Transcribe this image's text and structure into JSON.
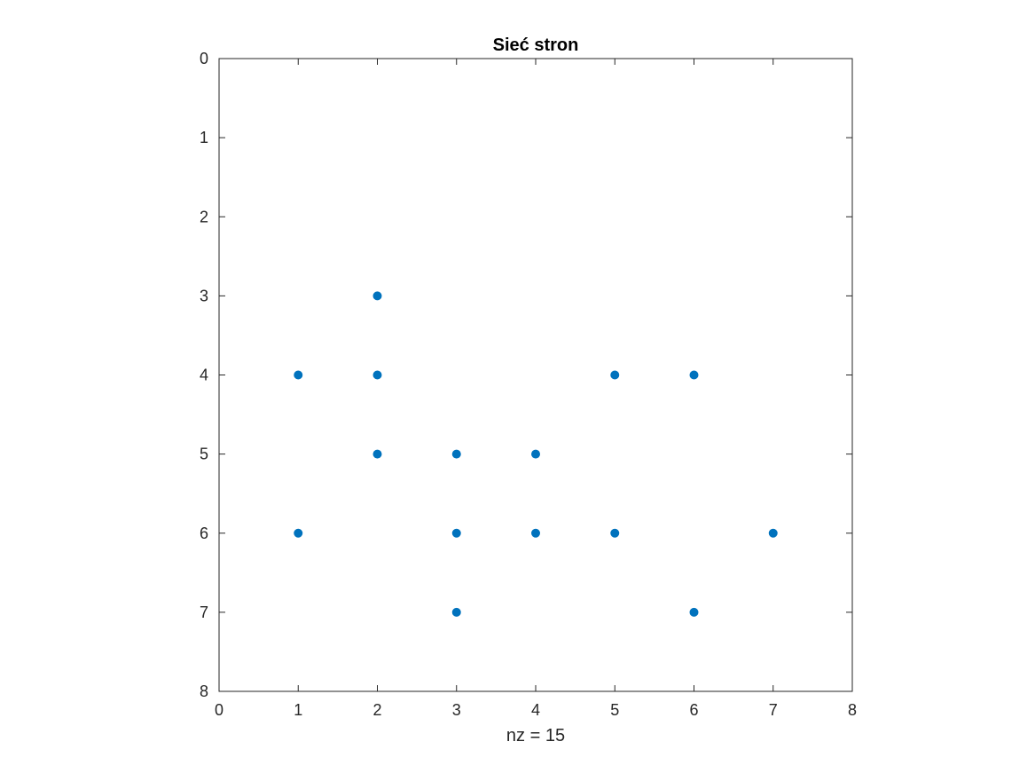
{
  "chart_data": {
    "type": "scatter",
    "title": "Sieć stron",
    "xlabel": "nz = 15",
    "ylabel": "",
    "xlim": [
      0,
      8
    ],
    "ylim": [
      0,
      8
    ],
    "y_reversed": true,
    "x_ticks": [
      "0",
      "1",
      "2",
      "3",
      "4",
      "5",
      "6",
      "7",
      "8"
    ],
    "y_ticks": [
      "0",
      "1",
      "2",
      "3",
      "4",
      "5",
      "6",
      "7",
      "8"
    ],
    "grid": false,
    "marker_color": "#0072BD",
    "points": [
      {
        "x": 1,
        "y": 4
      },
      {
        "x": 1,
        "y": 6
      },
      {
        "x": 2,
        "y": 3
      },
      {
        "x": 2,
        "y": 4
      },
      {
        "x": 2,
        "y": 5
      },
      {
        "x": 3,
        "y": 5
      },
      {
        "x": 3,
        "y": 6
      },
      {
        "x": 3,
        "y": 7
      },
      {
        "x": 4,
        "y": 5
      },
      {
        "x": 4,
        "y": 6
      },
      {
        "x": 5,
        "y": 4
      },
      {
        "x": 5,
        "y": 6
      },
      {
        "x": 6,
        "y": 4
      },
      {
        "x": 6,
        "y": 7
      },
      {
        "x": 7,
        "y": 6
      }
    ]
  }
}
